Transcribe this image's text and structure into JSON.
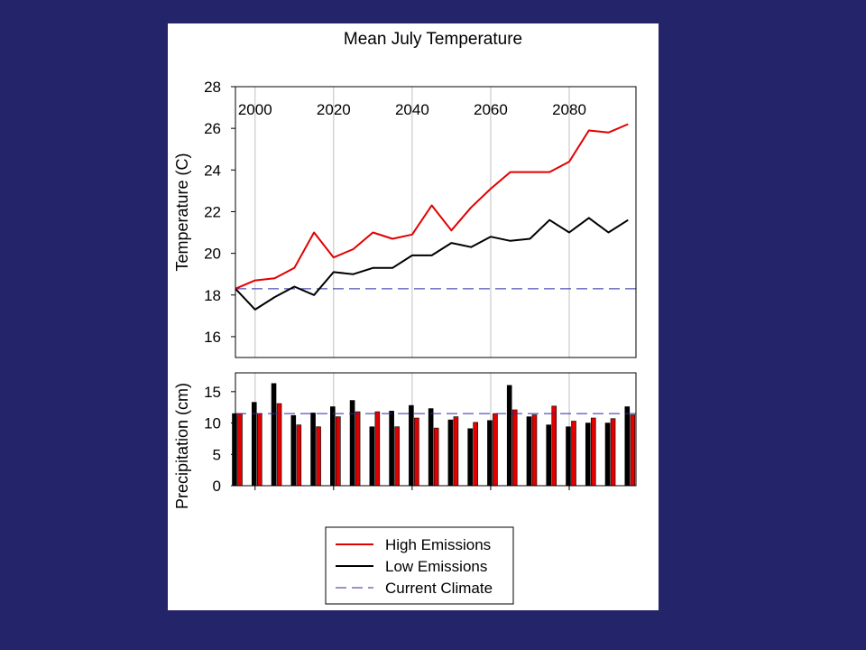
{
  "slide": {
    "background": "#24246a",
    "panel_background": "#ffffff"
  },
  "chart_data": [
    {
      "type": "line",
      "title": "Mean July Temperature",
      "ylabel": "Temperature (C)",
      "xlabel": "",
      "x": [
        1995,
        2000,
        2005,
        2010,
        2015,
        2020,
        2025,
        2030,
        2035,
        2040,
        2045,
        2050,
        2055,
        2060,
        2065,
        2070,
        2075,
        2080,
        2085,
        2090,
        2095
      ],
      "xlim": [
        1995,
        2097
      ],
      "x_tick_labels": [
        "2000",
        "2020",
        "2040",
        "2060",
        "2080"
      ],
      "x_tick_values": [
        2000,
        2020,
        2040,
        2060,
        2080
      ],
      "ylim": [
        15,
        28
      ],
      "y_ticks": [
        16,
        18,
        20,
        22,
        24,
        26,
        28
      ],
      "grid": "vertical",
      "series": [
        {
          "name": "High Emissions",
          "color": "#e00000",
          "values": [
            18.3,
            18.7,
            18.8,
            19.3,
            21.0,
            19.8,
            20.2,
            21.0,
            20.7,
            20.9,
            22.3,
            21.1,
            22.2,
            23.1,
            23.9,
            23.9,
            23.9,
            24.4,
            25.9,
            25.8,
            26.2
          ]
        },
        {
          "name": "Low Emissions",
          "color": "#000000",
          "values": [
            18.3,
            17.3,
            17.9,
            18.4,
            18.0,
            19.1,
            19.0,
            19.3,
            19.3,
            19.9,
            19.9,
            20.5,
            20.3,
            20.8,
            20.6,
            20.7,
            21.6,
            21.0,
            21.7,
            21.0,
            21.6
          ]
        }
      ],
      "reference_line": {
        "name": "Current Climate",
        "value": 18.3,
        "color": "#2a2aa0",
        "style": "dashed"
      }
    },
    {
      "type": "bar",
      "title": "",
      "ylabel": "Precipitation (cm)",
      "xlabel": "",
      "x": [
        1995,
        2000,
        2005,
        2010,
        2015,
        2020,
        2025,
        2030,
        2035,
        2040,
        2045,
        2050,
        2055,
        2060,
        2065,
        2070,
        2075,
        2080,
        2085,
        2090,
        2095
      ],
      "xlim": [
        1995,
        2097
      ],
      "ylim": [
        0,
        18
      ],
      "y_ticks": [
        0,
        5,
        10,
        15
      ],
      "grid": "vertical",
      "series": [
        {
          "name": "Low Emissions",
          "color": "#000000",
          "values": [
            11.5,
            13.3,
            16.3,
            11.2,
            11.6,
            12.6,
            13.6,
            9.4,
            11.9,
            12.8,
            12.3,
            10.5,
            9.1,
            10.4,
            16.0,
            11.0,
            9.7,
            9.4,
            10.0,
            10.0,
            12.6
          ]
        },
        {
          "name": "High Emissions",
          "color": "#e00000",
          "values": [
            11.5,
            11.5,
            13.1,
            9.7,
            9.4,
            11.0,
            11.8,
            11.8,
            9.4,
            10.8,
            9.2,
            11.0,
            10.1,
            11.5,
            12.1,
            11.3,
            12.7,
            10.3,
            10.8,
            10.7,
            11.3
          ]
        }
      ],
      "reference_line": {
        "name": "Current Climate",
        "value": 11.5,
        "color": "#2a2aa0",
        "style": "dashed"
      }
    }
  ],
  "legend": {
    "items": [
      {
        "label": "High Emissions",
        "color": "#e00000",
        "style": "solid"
      },
      {
        "label": "Low Emissions",
        "color": "#000000",
        "style": "solid"
      },
      {
        "label": "Current Climate",
        "color": "#2a2aa0",
        "style": "dashed"
      }
    ]
  }
}
